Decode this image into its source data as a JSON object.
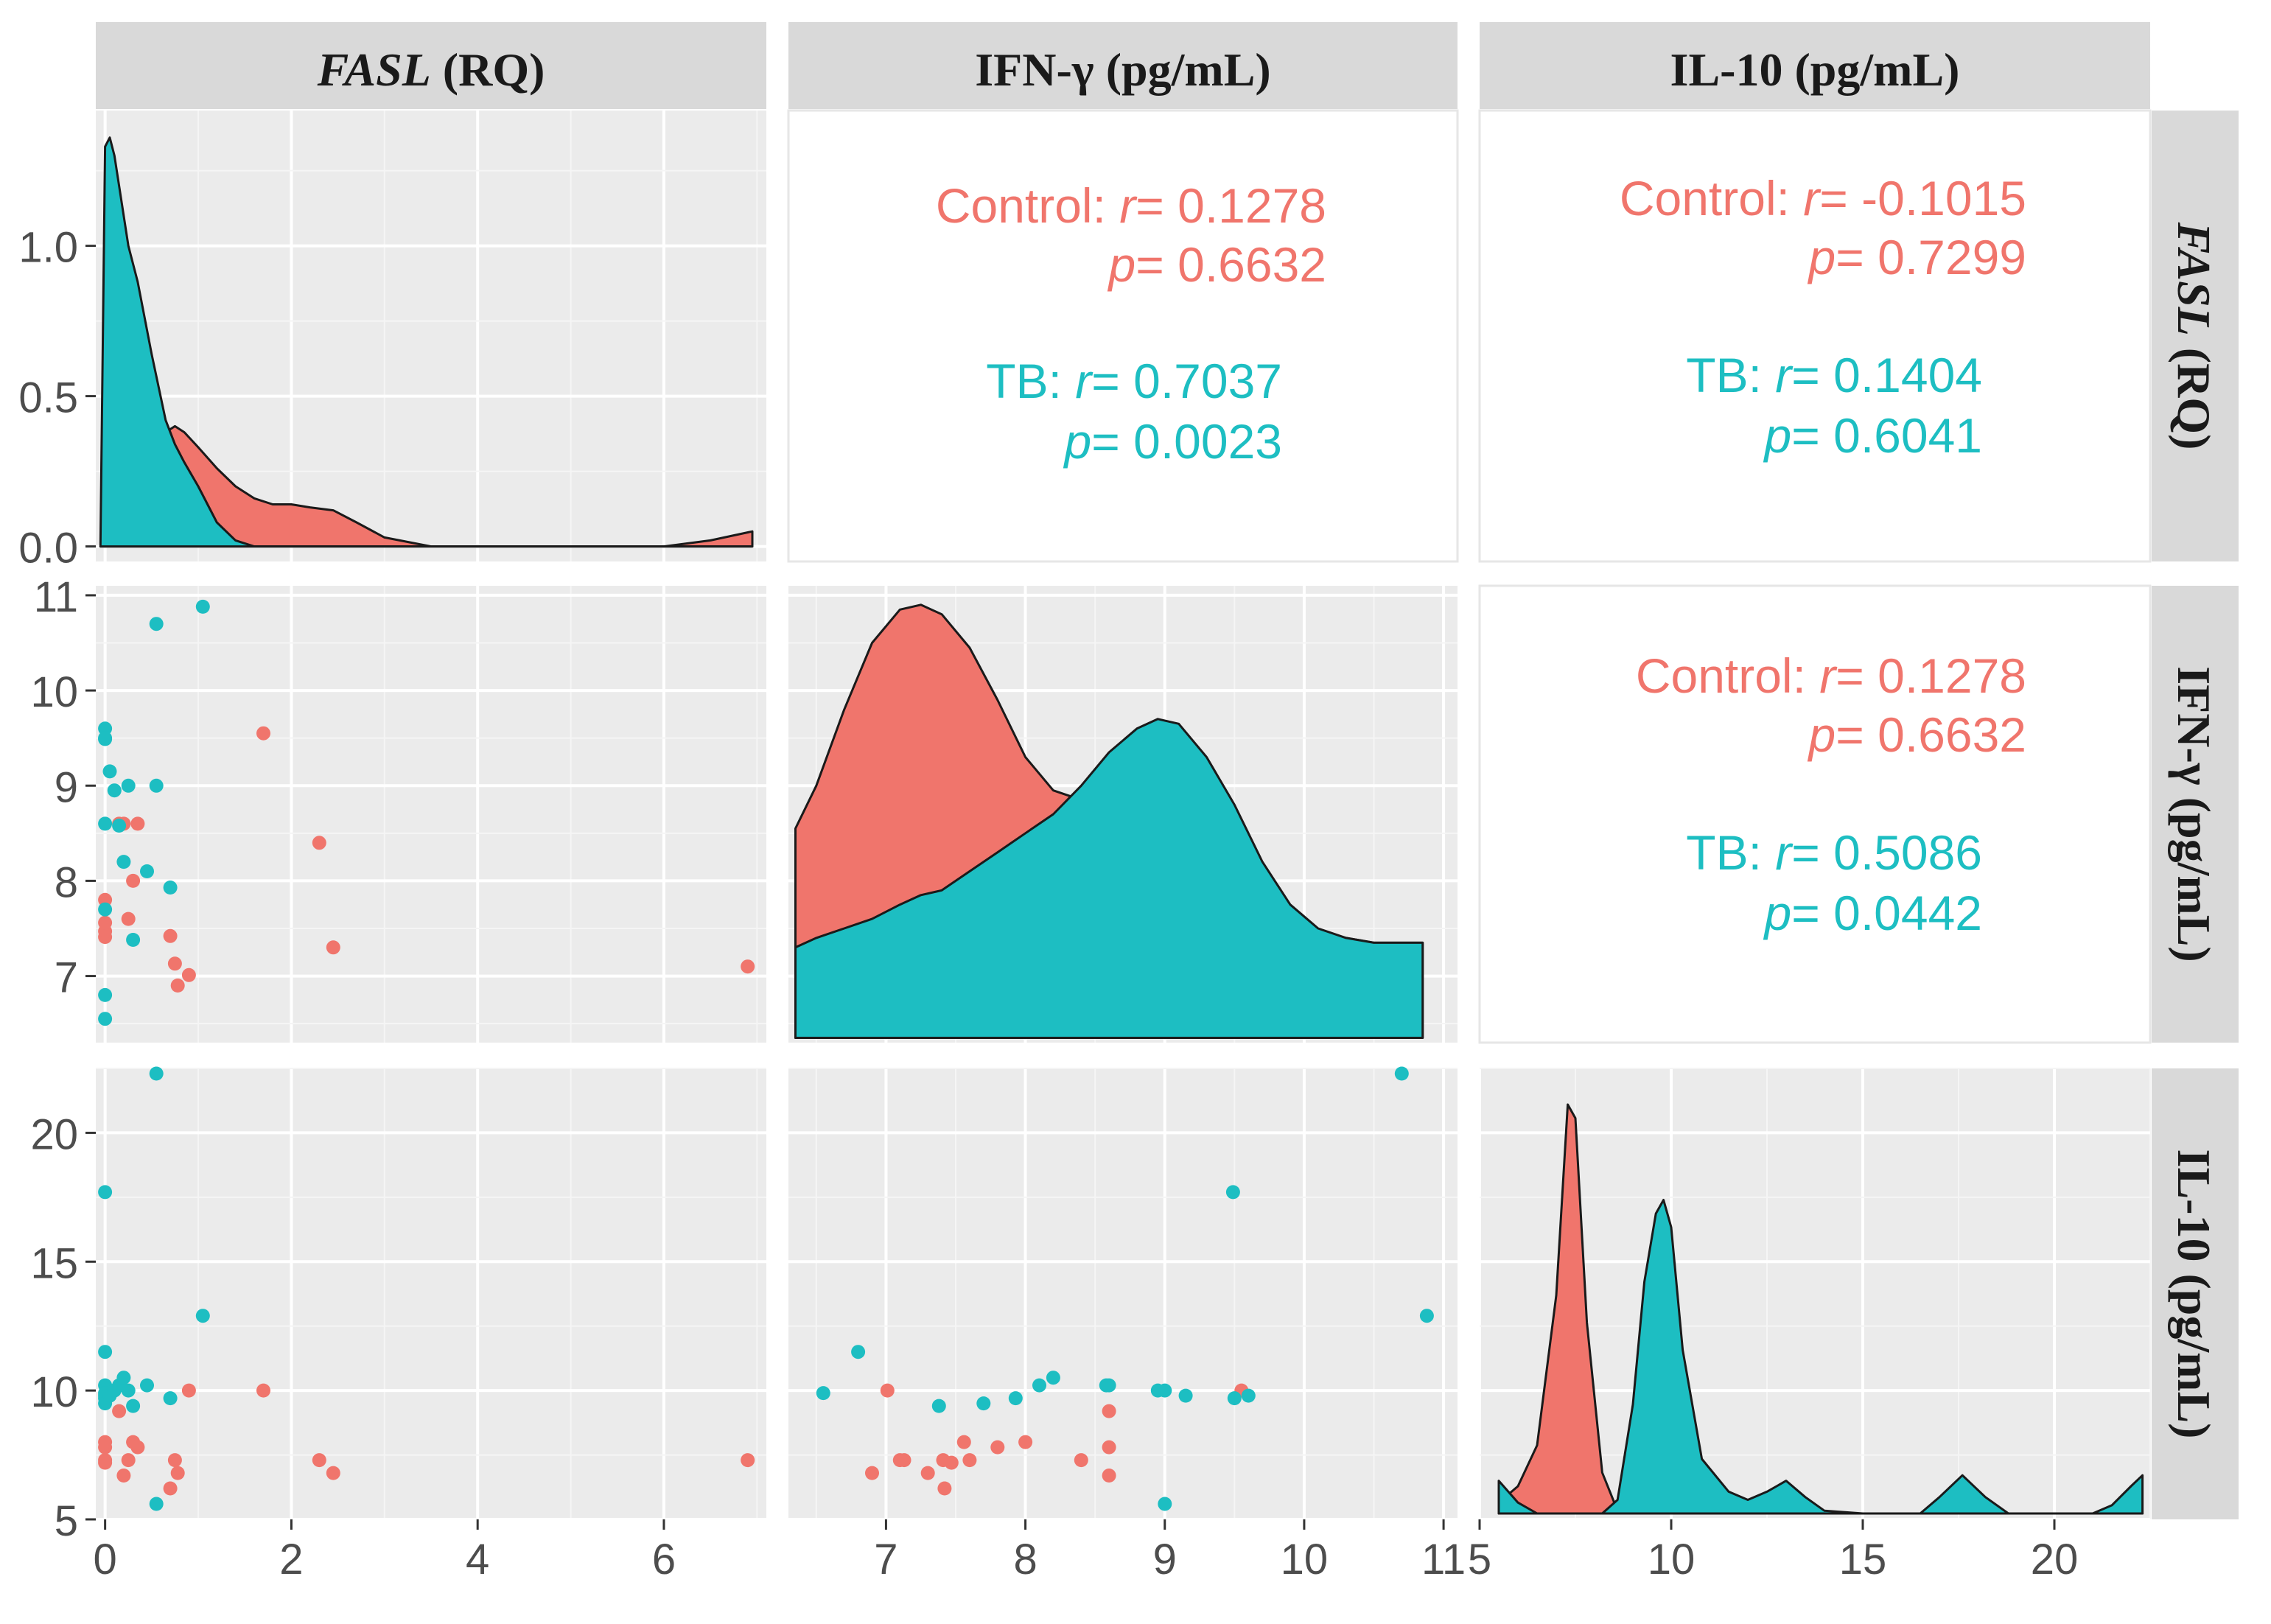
{
  "colors": {
    "control": "#f0756c",
    "tb": "#1dbec2",
    "panel_bg": "#ebebeb",
    "strip_bg": "#d9d9d9",
    "grid_major": "#ffffff",
    "grid_minor": "#f5f5f5"
  },
  "chart_data": {
    "type": "scatter",
    "title": "",
    "variables": [
      "FASL (RQ)",
      "IFN-γ (pg/mL)",
      "IL-10 (pg/mL)"
    ],
    "strip_labels": {
      "fasl": {
        "italic": "FASL",
        "rest": " (RQ)"
      },
      "ifn": "IFN-γ (pg/mL)",
      "il10": "IL-10 (pg/mL)"
    },
    "groups": [
      "Control",
      "TB"
    ],
    "axes": {
      "fasl": {
        "range": [
          -0.1,
          7.1
        ],
        "ticks": [
          0,
          2,
          4,
          6
        ],
        "tick_labels": [
          "0",
          "2",
          "4",
          "6"
        ]
      },
      "ifn": {
        "range": [
          6.3,
          11.1
        ],
        "ticks": [
          7,
          8,
          9,
          10,
          11
        ],
        "tick_labels": [
          "7",
          "8",
          "9",
          "10",
          "11"
        ]
      },
      "il10": {
        "range": [
          5,
          22.5
        ],
        "ticks": [
          5,
          10,
          15,
          20
        ],
        "tick_labels": [
          "5",
          "10",
          "15",
          "20"
        ]
      },
      "density_y": {
        "range": [
          -0.05,
          1.45
        ],
        "ticks": [
          0.0,
          0.5,
          1.0
        ],
        "tick_labels": [
          "0.0",
          "0.5",
          "1.0"
        ]
      },
      "ifn_y_ticks": {
        "ticks": [
          7,
          8,
          9,
          10,
          11
        ],
        "tick_labels": [
          "7",
          "8",
          "9",
          "10",
          "11"
        ]
      },
      "il10_y_ticks": {
        "ticks": [
          5,
          10,
          15,
          20
        ],
        "tick_labels": [
          "5",
          "10",
          "15",
          "20"
        ]
      }
    },
    "points": {
      "control": {
        "fasl": [
          0.0,
          0.0,
          0.0,
          0.0,
          0.15,
          0.2,
          0.25,
          0.3,
          0.35,
          0.7,
          0.75,
          0.78,
          0.9,
          1.7,
          2.3,
          2.45,
          6.9
        ],
        "ifn": [
          7.41,
          7.8,
          7.47,
          7.56,
          8.6,
          8.6,
          7.6,
          8.0,
          8.6,
          7.42,
          7.13,
          6.9,
          7.01,
          9.55,
          8.4,
          7.3,
          7.1
        ],
        "il10": [
          7.3,
          7.8,
          7.2,
          8.0,
          9.2,
          6.7,
          7.3,
          8.0,
          7.8,
          6.2,
          7.3,
          6.8,
          10.0,
          10.0,
          7.3,
          6.8,
          7.3
        ]
      },
      "tb": {
        "fasl": [
          0.0,
          0.0,
          0.0,
          0.0,
          0.0,
          0.0,
          0.0,
          0.05,
          0.1,
          0.15,
          0.2,
          0.25,
          0.3,
          0.45,
          0.55,
          0.55,
          0.7,
          1.05
        ],
        "ifn": [
          9.49,
          8.6,
          9.6,
          9.5,
          6.55,
          6.8,
          7.7,
          9.15,
          8.95,
          8.58,
          8.2,
          9.0,
          7.38,
          8.1,
          9.0,
          10.7,
          7.93,
          10.88
        ],
        "il10": [
          17.7,
          10.2,
          9.8,
          9.7,
          9.9,
          11.5,
          9.5,
          9.8,
          10.0,
          10.2,
          10.5,
          10.0,
          9.4,
          10.2,
          5.6,
          22.3,
          9.7,
          12.9
        ]
      }
    },
    "density": {
      "fasl": {
        "x": [
          -0.05,
          0.0,
          0.05,
          0.1,
          0.15,
          0.25,
          0.35,
          0.5,
          0.65,
          0.75,
          0.85,
          1.0,
          1.2,
          1.4,
          1.6,
          1.8,
          2.0,
          2.2,
          2.45,
          2.7,
          3.0,
          3.5,
          4.0,
          5.0,
          6.0,
          6.5,
          6.95
        ],
        "tb": [
          0.0,
          1.33,
          1.36,
          1.3,
          1.2,
          1.0,
          0.88,
          0.64,
          0.42,
          0.34,
          0.28,
          0.2,
          0.08,
          0.02,
          0.0,
          0.0,
          0.0,
          0.0,
          0.0,
          0.0,
          0.0,
          0.0,
          0.0,
          0.0,
          0.0,
          0.0,
          0.0
        ],
        "control": [
          0.0,
          0.0,
          0.0,
          0.0,
          0.0,
          0.0,
          0.0,
          0.0,
          0.38,
          0.4,
          0.38,
          0.33,
          0.26,
          0.2,
          0.16,
          0.14,
          0.14,
          0.13,
          0.12,
          0.08,
          0.03,
          0.0,
          0.0,
          0.0,
          0.0,
          0.02,
          0.05
        ]
      },
      "ifn": {
        "x": [
          6.35,
          6.5,
          6.7,
          6.9,
          7.1,
          7.25,
          7.4,
          7.6,
          7.8,
          8.0,
          8.2,
          8.4,
          8.6,
          8.8,
          8.95,
          9.1,
          9.3,
          9.5,
          9.7,
          9.9,
          10.1,
          10.3,
          10.5,
          10.7,
          10.85
        ],
        "control": [
          8.55,
          9.0,
          9.8,
          10.5,
          10.85,
          10.9,
          10.8,
          10.45,
          9.9,
          9.3,
          8.95,
          8.85,
          8.75,
          8.6,
          8.5,
          8.4,
          8.2,
          7.95,
          7.7,
          7.55,
          7.45,
          7.4,
          7.35,
          7.35,
          7.35
        ],
        "tb": [
          7.3,
          7.4,
          7.5,
          7.6,
          7.75,
          7.85,
          7.9,
          8.1,
          8.3,
          8.5,
          8.7,
          9.0,
          9.35,
          9.6,
          9.7,
          9.65,
          9.3,
          8.8,
          8.2,
          7.75,
          7.5,
          7.4,
          7.35,
          7.35,
          7.35
        ]
      },
      "il10": {
        "x": [
          5.5,
          6.0,
          6.5,
          7.0,
          7.3,
          7.5,
          7.8,
          8.2,
          8.6,
          9.0,
          9.3,
          9.6,
          9.8,
          10.0,
          10.3,
          10.8,
          11.5,
          12.0,
          12.5,
          13.0,
          13.5,
          14.0,
          15.0,
          16.5,
          17.0,
          17.6,
          18.2,
          18.8,
          20.0,
          21.0,
          21.5,
          22.0,
          22.3
        ],
        "control": [
          0.04,
          0.1,
          0.25,
          0.8,
          1.5,
          1.45,
          0.7,
          0.15,
          0.01,
          0.0,
          0.0,
          0.0,
          0.0,
          0.0,
          0.0,
          0.0,
          0.0,
          0.0,
          0.0,
          0.0,
          0.0,
          0.0,
          0.0,
          0.0,
          0.0,
          0.0,
          0.0,
          0.0,
          0.0,
          0.0,
          0.0,
          0.0,
          0.0
        ],
        "tb": [
          0.12,
          0.04,
          0.0,
          0.0,
          0.0,
          0.0,
          0.0,
          0.0,
          0.05,
          0.4,
          0.85,
          1.1,
          1.15,
          1.05,
          0.6,
          0.2,
          0.08,
          0.05,
          0.08,
          0.12,
          0.06,
          0.01,
          0.0,
          0.0,
          0.06,
          0.14,
          0.06,
          0.0,
          0.0,
          0.0,
          0.03,
          0.1,
          0.14
        ]
      }
    },
    "correlations": {
      "fasl_ifn": {
        "control": {
          "label": "Control: ",
          "r": "= 0.1278",
          "p": "= 0.6632"
        },
        "tb": {
          "label": "TB: ",
          "r": "= 0.7037",
          "p": "= 0.0023"
        }
      },
      "fasl_il10": {
        "control": {
          "label": "Control: ",
          "r": "= -0.1015",
          "p": "= 0.7299"
        },
        "tb": {
          "label": "TB: ",
          "r": "= 0.1404",
          "p": "= 0.6041"
        }
      },
      "ifn_il10": {
        "control": {
          "label": "Control: ",
          "r": "= 0.1278",
          "p": "= 0.6632"
        },
        "tb": {
          "label": "TB: ",
          "r": "= 0.5086",
          "p": "= 0.0442"
        }
      }
    },
    "corr_letters": {
      "r": "r",
      "p": "p"
    }
  }
}
